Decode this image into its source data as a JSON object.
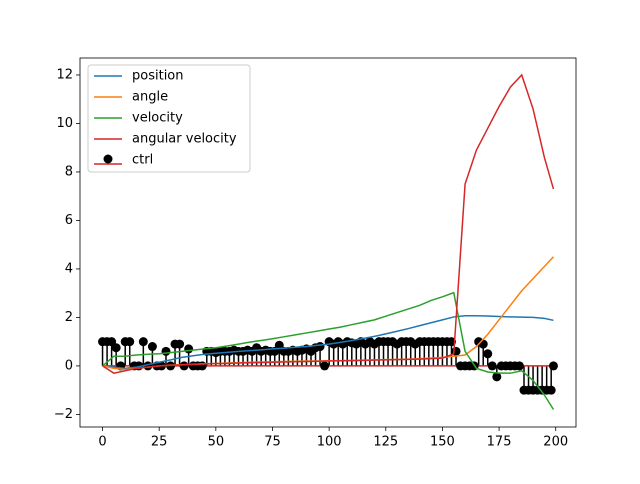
{
  "chart_data": {
    "type": "line_stem",
    "xlim": [
      -9.95,
      208.95
    ],
    "ylim": [
      -2.52,
      12.7
    ],
    "xticks": [
      0,
      25,
      50,
      75,
      100,
      125,
      150,
      175,
      200
    ],
    "yticks": [
      {
        "value": -2,
        "label": "−2"
      },
      0,
      2,
      4,
      6,
      8,
      10,
      12
    ],
    "legend": "upper left",
    "x": [
      0,
      5,
      10,
      15,
      20,
      25,
      30,
      35,
      40,
      45,
      50,
      55,
      60,
      65,
      70,
      75,
      80,
      85,
      90,
      95,
      100,
      105,
      110,
      115,
      120,
      125,
      130,
      135,
      140,
      145,
      150,
      155,
      160,
      165,
      170,
      175,
      180,
      185,
      190,
      195,
      199
    ],
    "series": [
      {
        "name": "position",
        "color": "#1f77b4",
        "values": [
          0,
          -0.05,
          -0.1,
          -0.05,
          0.05,
          0.15,
          0.25,
          0.35,
          0.42,
          0.48,
          0.52,
          0.56,
          0.6,
          0.63,
          0.66,
          0.7,
          0.73,
          0.77,
          0.8,
          0.85,
          0.9,
          0.97,
          1.05,
          1.13,
          1.22,
          1.32,
          1.43,
          1.54,
          1.66,
          1.78,
          1.9,
          2.02,
          2.07,
          2.07,
          2.06,
          2.04,
          2.02,
          2.01,
          2.0,
          1.96,
          1.88
        ]
      },
      {
        "name": "angle",
        "color": "#ff7f0e",
        "values": [
          0,
          -0.1,
          -0.15,
          -0.1,
          -0.05,
          0,
          0.03,
          0.05,
          0.07,
          0.09,
          0.1,
          0.12,
          0.13,
          0.15,
          0.16,
          0.17,
          0.18,
          0.19,
          0.2,
          0.2,
          0.21,
          0.22,
          0.23,
          0.24,
          0.25,
          0.26,
          0.27,
          0.28,
          0.3,
          0.32,
          0.35,
          0.4,
          0.45,
          0.8,
          1.3,
          1.9,
          2.5,
          3.1,
          3.6,
          4.1,
          4.5
        ]
      },
      {
        "name": "velocity",
        "color": "#2ca02c",
        "values": [
          0,
          0.4,
          0.4,
          0.45,
          0.48,
          0.5,
          0.55,
          0.6,
          0.65,
          0.7,
          0.75,
          0.82,
          0.9,
          0.98,
          1.05,
          1.12,
          1.2,
          1.28,
          1.36,
          1.44,
          1.52,
          1.6,
          1.7,
          1.8,
          1.9,
          2.05,
          2.2,
          2.35,
          2.5,
          2.7,
          2.85,
          3.02,
          0.6,
          -0.1,
          -0.25,
          -0.3,
          -0.3,
          -0.2,
          -0.6,
          -1.2,
          -1.8
        ]
      },
      {
        "name": "angular velocity",
        "color": "#d62728",
        "values": [
          0,
          -0.3,
          -0.2,
          -0.1,
          -0.05,
          0,
          0.02,
          0.04,
          0.06,
          0.08,
          0.1,
          0.1,
          0.12,
          0.13,
          0.14,
          0.15,
          0.16,
          0.17,
          0.18,
          0.19,
          0.2,
          0.21,
          0.22,
          0.23,
          0.24,
          0.25,
          0.26,
          0.27,
          0.28,
          0.3,
          0.32,
          0.5,
          7.5,
          8.9,
          9.8,
          10.7,
          11.5,
          12.0,
          10.6,
          8.6,
          7.3
        ]
      }
    ],
    "stem": {
      "name": "ctrl",
      "color": "#000000",
      "baseline_color": "#d62728",
      "x": [
        0,
        2,
        4,
        6,
        8,
        10,
        12,
        14,
        16,
        18,
        20,
        22,
        24,
        26,
        28,
        30,
        32,
        34,
        36,
        38,
        40,
        42,
        44,
        46,
        48,
        50,
        52,
        54,
        56,
        58,
        60,
        62,
        64,
        66,
        68,
        70,
        72,
        74,
        76,
        78,
        80,
        82,
        84,
        86,
        88,
        90,
        92,
        94,
        96,
        98,
        100,
        102,
        104,
        106,
        108,
        110,
        112,
        114,
        116,
        118,
        120,
        122,
        124,
        126,
        128,
        130,
        132,
        134,
        136,
        138,
        140,
        142,
        144,
        146,
        148,
        150,
        152,
        154,
        156,
        158,
        160,
        162,
        164,
        166,
        168,
        170,
        172,
        174,
        176,
        178,
        180,
        182,
        184,
        186,
        188,
        190,
        192,
        194,
        196,
        198,
        199
      ],
      "values": [
        1,
        1,
        1,
        0.75,
        0,
        1,
        1,
        0,
        0,
        1,
        0,
        0.8,
        0,
        0,
        0.6,
        0,
        0.9,
        0.9,
        0,
        0.7,
        0,
        0,
        0,
        0.6,
        0.6,
        0.55,
        0.6,
        0.6,
        0.6,
        0.65,
        0.6,
        0.6,
        0.65,
        0.6,
        0.75,
        0.6,
        0.65,
        0.6,
        0.6,
        0.85,
        0.6,
        0.6,
        0.65,
        0.6,
        0.65,
        0.7,
        0.6,
        0.75,
        0.8,
        0,
        1,
        0.9,
        1,
        0.9,
        1,
        0.95,
        0.9,
        1,
        0.9,
        1,
        0.9,
        1,
        1,
        1,
        1,
        0.9,
        1,
        1,
        1,
        0.9,
        1,
        1,
        1,
        1,
        1,
        1,
        1,
        1,
        0.6,
        0,
        0,
        0,
        0,
        1,
        0.9,
        0.5,
        0,
        -0.45,
        0,
        0,
        0,
        0,
        0,
        -1,
        -1,
        -1,
        -1,
        -1,
        -1,
        -1,
        0
      ]
    }
  }
}
